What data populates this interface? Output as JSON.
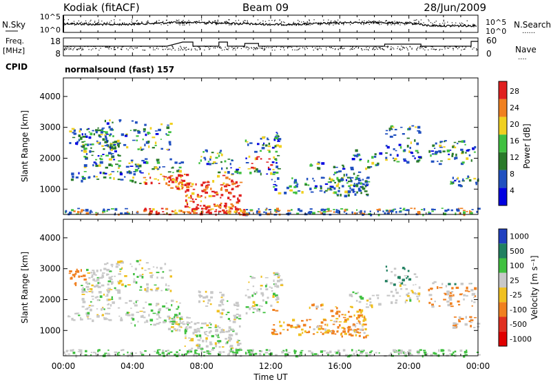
{
  "header": {
    "title": "Kodiak (fitACF)",
    "beam": "Beam 09",
    "date": "28/Jun/2009"
  },
  "noise_panel": {
    "left_label": "N.Sky",
    "right_label": "N.Search",
    "right_key": "......",
    "left_ticks": [
      "10^5",
      "10^0"
    ],
    "right_ticks": [
      "10^5",
      "10^0"
    ]
  },
  "freq_panel": {
    "left_label_1": "Freq.",
    "left_label_2": "[MHz]",
    "right_label": "Nave",
    "right_key": "....",
    "left_ticks": [
      "18",
      "8"
    ],
    "right_ticks": [
      "60",
      "0"
    ]
  },
  "cpid": {
    "label": "CPID",
    "value": "normalsound (fast) 157"
  },
  "time_axis": {
    "label": "Time UT",
    "ticks": [
      "00:00",
      "04:00",
      "08:00",
      "12:00",
      "16:00",
      "20:00",
      "00:00"
    ]
  },
  "chart_data": [
    {
      "type": "heatmap",
      "name": "power",
      "ylabel": "Slant Range [km]",
      "yticks": [
        1000,
        2000,
        3000,
        4000
      ],
      "ylim": [
        180,
        4600
      ],
      "xlim_hours": [
        0,
        24
      ],
      "colorbar_label": "Power [dB]",
      "colorbar_ticks": [
        "4",
        "8",
        "12",
        "16",
        "20",
        "24",
        "28"
      ],
      "colors": [
        "#0000e0",
        "#2050c0",
        "#2a7a2a",
        "#40c040",
        "#f0d020",
        "#f08020",
        "#e02020"
      ]
    },
    {
      "type": "heatmap",
      "name": "velocity",
      "ylabel": "Slant Range [km]",
      "yticks": [
        1000,
        2000,
        3000,
        4000
      ],
      "ylim": [
        180,
        4600
      ],
      "xlim_hours": [
        0,
        24
      ],
      "colorbar_label": "Velocity [m s⁻¹]",
      "colorbar_ticks": [
        "1000",
        "500",
        "100",
        "25",
        "-25",
        "-100",
        "-500",
        "-1000"
      ],
      "colors": [
        "#2040c0",
        "#208060",
        "#40c040",
        "#c8c8c8",
        "#f0c020",
        "#f08020",
        "#e03020",
        "#e00000"
      ]
    }
  ]
}
